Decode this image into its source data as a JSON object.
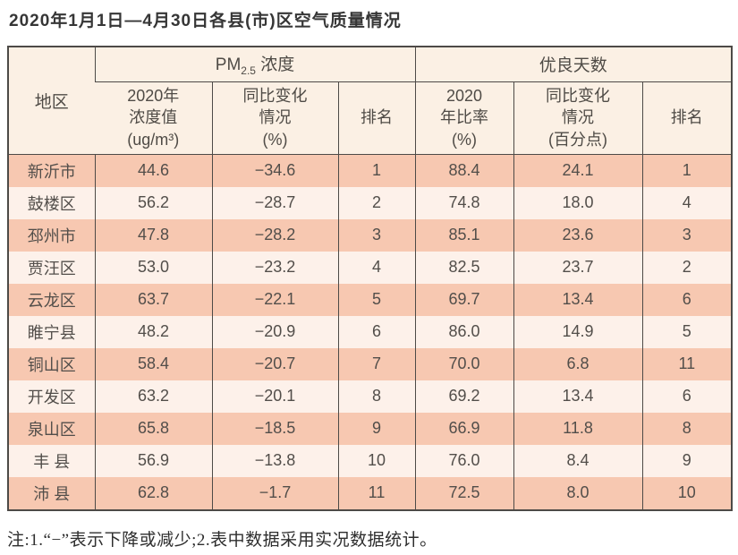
{
  "title": "2020年1月1日—4月30日各县(市)区空气质量情况",
  "table": {
    "region_header": "地区",
    "pm_group": {
      "prefix": "PM",
      "sub": "2.5",
      "suffix": " 浓度"
    },
    "good_days_group": "优良天数",
    "sub_headers": {
      "pm_value": "2020年\n浓度值\n(ug/m³)",
      "pm_change": "同比变化\n情况\n(%)",
      "pm_rank": "排名",
      "days_ratio": "2020\n年比率\n(%)",
      "days_change": "同比变化\n情况\n(百分点)",
      "days_rank": "排名"
    },
    "rows": [
      {
        "region": "新沂市",
        "pm_value": "44.6",
        "pm_change": "−34.6",
        "pm_rank": "1",
        "days_ratio": "88.4",
        "days_change": "24.1",
        "days_rank": "1"
      },
      {
        "region": "鼓楼区",
        "pm_value": "56.2",
        "pm_change": "−28.7",
        "pm_rank": "2",
        "days_ratio": "74.8",
        "days_change": "18.0",
        "days_rank": "4"
      },
      {
        "region": "邳州市",
        "pm_value": "47.8",
        "pm_change": "−28.2",
        "pm_rank": "3",
        "days_ratio": "85.1",
        "days_change": "23.6",
        "days_rank": "3"
      },
      {
        "region": "贾汪区",
        "pm_value": "53.0",
        "pm_change": "−23.2",
        "pm_rank": "4",
        "days_ratio": "82.5",
        "days_change": "23.7",
        "days_rank": "2"
      },
      {
        "region": "云龙区",
        "pm_value": "63.7",
        "pm_change": "−22.1",
        "pm_rank": "5",
        "days_ratio": "69.7",
        "days_change": "13.4",
        "days_rank": "6"
      },
      {
        "region": "睢宁县",
        "pm_value": "48.2",
        "pm_change": "−20.9",
        "pm_rank": "6",
        "days_ratio": "86.0",
        "days_change": "14.9",
        "days_rank": "5"
      },
      {
        "region": "铜山区",
        "pm_value": "58.4",
        "pm_change": "−20.7",
        "pm_rank": "7",
        "days_ratio": "70.0",
        "days_change": "6.8",
        "days_rank": "11"
      },
      {
        "region": "开发区",
        "pm_value": "63.2",
        "pm_change": "−20.1",
        "pm_rank": "8",
        "days_ratio": "69.2",
        "days_change": "13.4",
        "days_rank": "6"
      },
      {
        "region": "泉山区",
        "pm_value": "65.8",
        "pm_change": "−18.5",
        "pm_rank": "9",
        "days_ratio": "66.9",
        "days_change": "11.8",
        "days_rank": "8"
      },
      {
        "region": "丰 县",
        "pm_value": "56.9",
        "pm_change": "−13.8",
        "pm_rank": "10",
        "days_ratio": "76.0",
        "days_change": "8.4",
        "days_rank": "9"
      },
      {
        "region": "沛 县",
        "pm_value": "62.8",
        "pm_change": "−1.7",
        "pm_rank": "11",
        "days_ratio": "72.5",
        "days_change": "8.0",
        "days_rank": "10"
      }
    ]
  },
  "note": "注:1.“−”表示下降或减少;2.表中数据采用实况数据统计。"
}
